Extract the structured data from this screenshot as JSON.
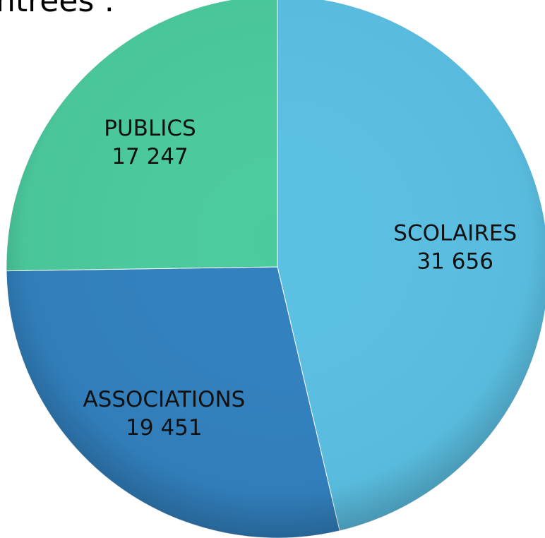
{
  "chart_title": "ntrées :",
  "chart_data": {
    "type": "pie",
    "title": "",
    "legend": "none (labels on slices)",
    "slices": [
      {
        "label": "SCOLAIRES",
        "value": 31656,
        "value_label": "31 656",
        "color": "#5BC0E3"
      },
      {
        "label": "ASSOCIATIONS",
        "value": 19451,
        "value_label": "19 451",
        "color": "#3281BF"
      },
      {
        "label": "PUBLICS",
        "value": 17247,
        "value_label": "17 247",
        "color": "#4BCB9D"
      }
    ]
  }
}
